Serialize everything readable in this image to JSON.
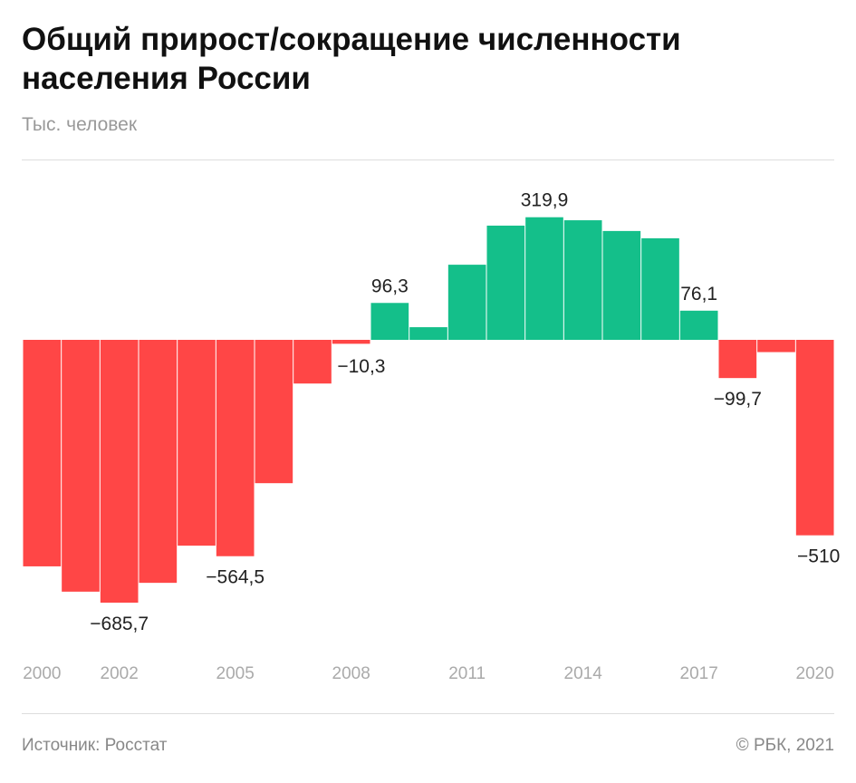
{
  "title": "Общий прирост/сокращение численности населения России",
  "subtitle": "Тыс. человек",
  "source": "Источник: Росстат",
  "copyright": "© РБК, 2021",
  "colors": {
    "negative": "#ff4646",
    "positive": "#14bf8a"
  },
  "chart_data": {
    "type": "bar",
    "title": "Общий прирост/сокращение численности населения России",
    "ylabel": "Тыс. человек",
    "categories": [
      2000,
      2001,
      2002,
      2003,
      2004,
      2005,
      2006,
      2007,
      2008,
      2009,
      2010,
      2011,
      2012,
      2013,
      2014,
      2015,
      2016,
      2017,
      2018,
      2019,
      2020
    ],
    "values": [
      -591,
      -657,
      -685.7,
      -634,
      -537,
      -564.5,
      -374,
      -114,
      -10.3,
      96.3,
      33,
      196,
      298,
      319.9,
      312,
      284,
      265,
      76.1,
      -99.7,
      -32,
      -510
    ],
    "data_labels": {
      "2002": "−685,7",
      "2005": "−564,5",
      "2008": "−10,3",
      "2009": "96,3",
      "2013": "319,9",
      "2017": "76,1",
      "2018": "−99,7",
      "2020": "−510"
    },
    "x_ticks": [
      "2000",
      "2002",
      "2005",
      "2008",
      "2011",
      "2014",
      "2017",
      "2020"
    ],
    "grid": false
  }
}
